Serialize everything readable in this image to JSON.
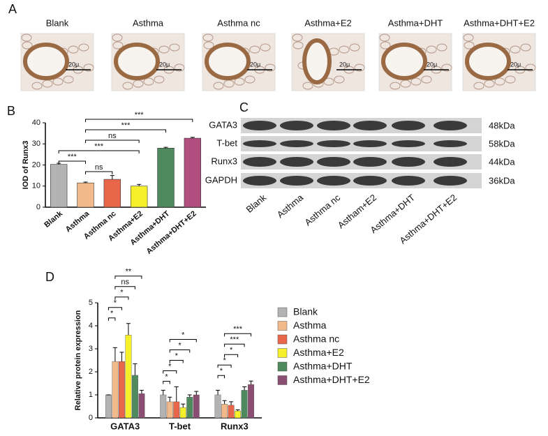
{
  "panel_labels": [
    "A",
    "B",
    "C",
    "D"
  ],
  "panel_a": {
    "labels": [
      "Blank",
      "Asthma",
      "Asthma nc",
      "Asthma+E2",
      "Asthma+DHT",
      "Asthma+DHT+E2"
    ],
    "scale_label": "20μ"
  },
  "panel_c": {
    "proteins": [
      "GATA3",
      "T-bet",
      "Runx3",
      "GAPDH"
    ],
    "sizes": [
      "48kDa",
      "58kDa",
      "44kDa",
      "36kDa"
    ],
    "lanes": [
      "Blank",
      "Asthma",
      "Asthma nc",
      "Astham+E2",
      "Asthma+DHT",
      "Asthma+DHT+E2"
    ]
  },
  "chart_data": [
    {
      "type": "bar",
      "ylabel": "IOD of Runx3",
      "categories": [
        "Blank",
        "Asthma",
        "Asthma nc",
        "Asthma+E2",
        "Asthma+DHT",
        "Asthma+DHT+E2"
      ],
      "values": [
        20.3,
        11.5,
        13.2,
        10,
        28,
        32.7
      ],
      "errors": [
        0.5,
        0.4,
        1.8,
        0.8,
        0.4,
        0.4
      ],
      "colors": [
        "#b3b3b3",
        "#f2b98a",
        "#e8664a",
        "#f5f02a",
        "#4f8a5f",
        "#b04e80"
      ],
      "ylim": [
        0,
        40
      ],
      "yticks": [
        0,
        10,
        20,
        30,
        40
      ],
      "annotations": [
        {
          "between": [
            "Asthma",
            "Asthma nc"
          ],
          "label": "ns"
        },
        {
          "between": [
            "Blank",
            "Asthma"
          ],
          "label": "***"
        },
        {
          "between": [
            "Blank",
            "Asthma+E2"
          ],
          "label": "***"
        },
        {
          "between": [
            "Asthma",
            "Asthma+E2"
          ],
          "label": "ns"
        },
        {
          "between": [
            "Asthma",
            "Asthma+DHT"
          ],
          "label": "***"
        },
        {
          "between": [
            "Asthma",
            "Asthma+DHT+E2"
          ],
          "label": "***"
        }
      ]
    },
    {
      "type": "grouped_bar",
      "ylabel": "Relative protein expression",
      "legend": "right",
      "categories": [
        "GATA3",
        "T-bet",
        "Runx3"
      ],
      "series": [
        {
          "name": "Blank",
          "color": "#b3b3b3",
          "values": [
            1.0,
            1.0,
            1.0
          ],
          "errors": [
            0,
            0.2,
            0.2
          ]
        },
        {
          "name": "Asthma",
          "color": "#f2b98a",
          "values": [
            2.45,
            0.7,
            0.6
          ],
          "errors": [
            0.6,
            0.2,
            0.15
          ]
        },
        {
          "name": "Asthma nc",
          "color": "#e8664a",
          "values": [
            2.45,
            0.7,
            0.55
          ],
          "errors": [
            0.4,
            0.65,
            0.15
          ]
        },
        {
          "name": "Asthma+E2",
          "color": "#f5f02a",
          "values": [
            3.6,
            0.45,
            0.3
          ],
          "errors": [
            0.5,
            0.15,
            0.05
          ]
        },
        {
          "name": "Asthma+DHT",
          "color": "#4f8a5f",
          "values": [
            1.85,
            0.9,
            1.2
          ],
          "errors": [
            0.5,
            0.1,
            0.15
          ]
        },
        {
          "name": "Asthma+DHT+E2",
          "color": "#8a4e72",
          "values": [
            1.05,
            1.0,
            1.45
          ],
          "errors": [
            0.15,
            0.15,
            0.15
          ]
        }
      ],
      "ylim": [
        0,
        5
      ],
      "yticks": [
        0,
        1,
        2,
        3,
        4,
        5
      ],
      "annotations": [
        {
          "category": "GATA3",
          "between": [
            "Blank",
            "Asthma"
          ],
          "label": "*"
        },
        {
          "category": "GATA3",
          "between": [
            "Blank",
            "Asthma nc"
          ],
          "label": "*"
        },
        {
          "category": "GATA3",
          "between": [
            "Asthma",
            "Asthma+E2"
          ],
          "label": "*"
        },
        {
          "category": "GATA3",
          "between": [
            "Asthma",
            "Asthma+DHT"
          ],
          "label": "ns"
        },
        {
          "category": "GATA3",
          "between": [
            "Asthma",
            "Asthma+DHT+E2"
          ],
          "label": "**"
        },
        {
          "category": "T-bet",
          "between": [
            "Blank",
            "Asthma"
          ],
          "label": "*"
        },
        {
          "category": "T-bet",
          "between": [
            "Blank",
            "Asthma nc"
          ],
          "label": "*"
        },
        {
          "category": "T-bet",
          "between": [
            "Asthma",
            "Asthma+E2"
          ],
          "label": "*"
        },
        {
          "category": "T-bet",
          "between": [
            "Asthma",
            "Asthma+DHT"
          ],
          "label": "*"
        },
        {
          "category": "T-bet",
          "between": [
            "Asthma",
            "Asthma+DHT+E2"
          ],
          "label": "*"
        },
        {
          "category": "Runx3",
          "between": [
            "Blank",
            "Asthma"
          ],
          "label": "*"
        },
        {
          "category": "Runx3",
          "between": [
            "Blank",
            "Asthma nc"
          ],
          "label": "*"
        },
        {
          "category": "Runx3",
          "between": [
            "Asthma",
            "Asthma+E2"
          ],
          "label": "*"
        },
        {
          "category": "Runx3",
          "between": [
            "Asthma",
            "Asthma+DHT"
          ],
          "label": "***"
        },
        {
          "category": "Runx3",
          "between": [
            "Asthma",
            "Asthma+DHT+E2"
          ],
          "label": "***"
        }
      ]
    }
  ]
}
